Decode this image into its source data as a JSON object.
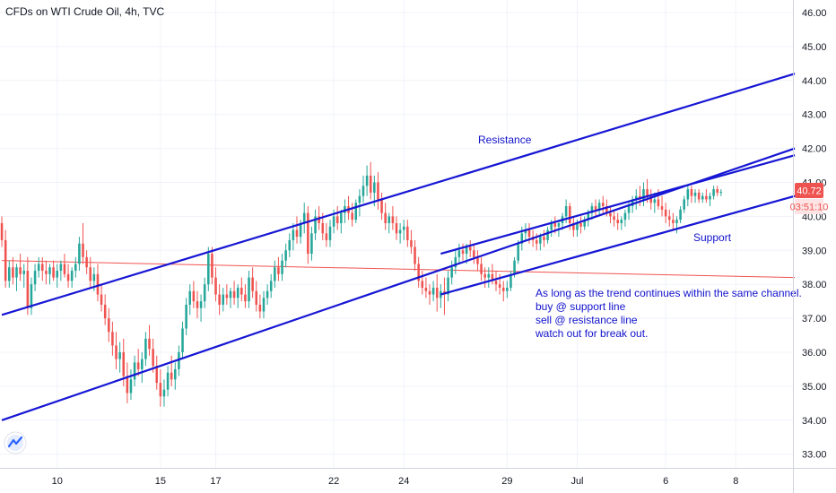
{
  "header": {
    "title": "CFDs on WTI Crude Oil, 4h, TVC"
  },
  "price_badge": {
    "value": "40.72",
    "timer": "03:51:10",
    "color": "#ef5350"
  },
  "colors": {
    "up": "#26a69a",
    "down": "#ef5350",
    "channel": "#1616d4",
    "hline": "#ef5350",
    "grid": "#f0f3fa",
    "annotation": "#1111cc"
  },
  "logo": {
    "icon": "tradingview-logo-icon"
  },
  "chart_data": {
    "type": "candlestick",
    "y_ticks": [
      "46.00",
      "45.00",
      "44.00",
      "43.00",
      "42.00",
      "41.00",
      "40.00",
      "39.00",
      "38.00",
      "37.00",
      "36.00",
      "35.00",
      "34.00",
      "33.00"
    ],
    "x_ticks": [
      {
        "label": "10",
        "slot": 15
      },
      {
        "label": "15",
        "slot": 43
      },
      {
        "label": "17",
        "slot": 58
      },
      {
        "label": "22",
        "slot": 90
      },
      {
        "label": "24",
        "slot": 109
      },
      {
        "label": "29",
        "slot": 137
      },
      {
        "label": "Jul",
        "slot": 156
      },
      {
        "label": "6",
        "slot": 180
      },
      {
        "label": "8",
        "slot": 199
      }
    ],
    "ylim": [
      32.6,
      46.2
    ],
    "slots": 215,
    "annotations": {
      "resistance": "Resistance",
      "support": "Support",
      "note": [
        "As long as the trend continues within the same channel.",
        "buy @ support line",
        "sell @ resistance line",
        "watch out for break out."
      ]
    },
    "lines": [
      {
        "name": "outer-resistance",
        "from": [
          0,
          37.1
        ],
        "to": [
          215,
          44.2
        ]
      },
      {
        "name": "outer-support",
        "from": [
          0,
          34.0
        ],
        "to": [
          215,
          42.0
        ]
      },
      {
        "name": "inner-resistance",
        "from": [
          119,
          38.9
        ],
        "to": [
          215,
          41.8
        ]
      },
      {
        "name": "inner-support",
        "from": [
          119,
          37.7
        ],
        "to": [
          215,
          40.6
        ]
      },
      {
        "name": "horizontal",
        "from": [
          0,
          38.7
        ],
        "to": [
          215,
          38.2
        ]
      }
    ],
    "candles": [
      [
        39.8,
        40.0,
        39.1,
        39.3
      ],
      [
        39.3,
        39.6,
        37.9,
        38.1
      ],
      [
        38.1,
        38.7,
        37.9,
        38.5
      ],
      [
        38.5,
        38.8,
        38.0,
        38.2
      ],
      [
        38.2,
        38.6,
        37.8,
        38.5
      ],
      [
        38.5,
        38.9,
        38.1,
        38.3
      ],
      [
        38.3,
        38.6,
        37.9,
        38.4
      ],
      [
        38.4,
        38.8,
        37.1,
        37.3
      ],
      [
        37.3,
        38.2,
        37.1,
        38.0
      ],
      [
        38.0,
        38.6,
        37.8,
        38.4
      ],
      [
        38.4,
        38.8,
        38.2,
        38.6
      ],
      [
        38.6,
        38.8,
        38.1,
        38.4
      ],
      [
        38.4,
        38.7,
        38.0,
        38.3
      ],
      [
        38.3,
        38.6,
        38.0,
        38.5
      ],
      [
        38.5,
        38.7,
        38.1,
        38.2
      ],
      [
        38.2,
        38.6,
        37.9,
        38.4
      ],
      [
        38.4,
        38.7,
        38.1,
        38.6
      ],
      [
        38.6,
        38.9,
        38.2,
        38.3
      ],
      [
        38.3,
        38.6,
        37.9,
        38.1
      ],
      [
        38.1,
        38.5,
        37.9,
        38.4
      ],
      [
        38.4,
        38.8,
        38.2,
        38.6
      ],
      [
        38.6,
        39.4,
        38.4,
        39.2
      ],
      [
        39.2,
        39.8,
        38.6,
        38.8
      ],
      [
        38.8,
        39.0,
        38.3,
        38.5
      ],
      [
        38.5,
        38.8,
        37.9,
        38.1
      ],
      [
        38.1,
        38.5,
        37.8,
        38.3
      ],
      [
        38.3,
        38.6,
        37.5,
        37.7
      ],
      [
        37.7,
        38.0,
        37.2,
        37.4
      ],
      [
        37.4,
        37.7,
        36.8,
        37.0
      ],
      [
        37.0,
        37.3,
        36.3,
        36.6
      ],
      [
        36.6,
        36.9,
        35.9,
        36.2
      ],
      [
        36.2,
        36.6,
        35.5,
        35.8
      ],
      [
        35.8,
        36.3,
        35.4,
        36.0
      ],
      [
        36.0,
        36.4,
        35.0,
        35.3
      ],
      [
        35.3,
        35.7,
        34.5,
        34.8
      ],
      [
        34.8,
        35.5,
        34.6,
        35.2
      ],
      [
        35.2,
        35.9,
        35.0,
        35.7
      ],
      [
        35.7,
        36.1,
        35.3,
        35.5
      ],
      [
        35.5,
        36.0,
        35.1,
        35.8
      ],
      [
        35.8,
        36.6,
        35.6,
        36.4
      ],
      [
        36.4,
        36.8,
        35.9,
        36.1
      ],
      [
        36.1,
        36.4,
        35.4,
        35.6
      ],
      [
        35.6,
        35.9,
        34.9,
        35.1
      ],
      [
        35.1,
        35.5,
        34.4,
        34.7
      ],
      [
        34.7,
        35.2,
        34.4,
        34.9
      ],
      [
        34.9,
        35.6,
        34.7,
        35.4
      ],
      [
        35.4,
        35.9,
        35.0,
        35.2
      ],
      [
        35.2,
        35.7,
        34.9,
        35.5
      ],
      [
        35.5,
        36.2,
        35.3,
        36.0
      ],
      [
        36.0,
        36.9,
        35.8,
        36.7
      ],
      [
        36.7,
        37.6,
        36.5,
        37.4
      ],
      [
        37.4,
        38.0,
        37.1,
        37.8
      ],
      [
        37.8,
        38.1,
        37.3,
        37.5
      ],
      [
        37.5,
        37.8,
        37.0,
        37.3
      ],
      [
        37.3,
        37.7,
        36.9,
        37.5
      ],
      [
        37.5,
        38.2,
        37.3,
        38.0
      ],
      [
        38.0,
        39.1,
        37.8,
        38.9
      ],
      [
        38.9,
        39.1,
        38.0,
        38.2
      ],
      [
        38.2,
        38.5,
        37.5,
        37.7
      ],
      [
        37.7,
        38.0,
        37.1,
        37.4
      ],
      [
        37.4,
        37.9,
        37.2,
        37.7
      ],
      [
        37.7,
        38.0,
        37.4,
        37.6
      ],
      [
        37.6,
        37.9,
        37.3,
        37.8
      ],
      [
        37.8,
        38.1,
        37.4,
        37.6
      ],
      [
        37.6,
        38.0,
        37.3,
        37.9
      ],
      [
        37.9,
        38.2,
        37.5,
        37.7
      ],
      [
        37.7,
        38.0,
        37.3,
        37.5
      ],
      [
        37.5,
        38.4,
        37.3,
        38.2
      ],
      [
        38.2,
        38.5,
        37.6,
        37.8
      ],
      [
        37.8,
        38.1,
        37.2,
        37.4
      ],
      [
        37.4,
        37.7,
        37.0,
        37.2
      ],
      [
        37.2,
        37.8,
        37.0,
        37.6
      ],
      [
        37.6,
        38.0,
        37.4,
        37.8
      ],
      [
        37.8,
        38.3,
        37.6,
        38.1
      ],
      [
        38.1,
        38.7,
        37.9,
        38.5
      ],
      [
        38.5,
        38.8,
        38.1,
        38.3
      ],
      [
        38.3,
        38.9,
        38.1,
        38.7
      ],
      [
        38.7,
        39.2,
        38.5,
        39.0
      ],
      [
        39.0,
        39.5,
        38.8,
        39.3
      ],
      [
        39.3,
        39.8,
        39.0,
        39.6
      ],
      [
        39.6,
        40.0,
        39.2,
        39.4
      ],
      [
        39.4,
        39.9,
        39.2,
        39.8
      ],
      [
        39.8,
        40.4,
        39.5,
        40.1
      ],
      [
        40.1,
        40.3,
        38.6,
        38.9
      ],
      [
        38.9,
        39.7,
        38.7,
        39.5
      ],
      [
        39.5,
        40.2,
        39.3,
        40.0
      ],
      [
        40.0,
        40.3,
        39.6,
        39.8
      ],
      [
        39.8,
        40.1,
        39.3,
        39.5
      ],
      [
        39.5,
        39.8,
        39.1,
        39.3
      ],
      [
        39.3,
        39.9,
        39.1,
        39.7
      ],
      [
        39.7,
        40.2,
        39.5,
        40.0
      ],
      [
        40.0,
        40.3,
        39.6,
        39.8
      ],
      [
        39.8,
        40.2,
        39.5,
        40.1
      ],
      [
        40.1,
        40.5,
        39.8,
        40.3
      ],
      [
        40.3,
        40.6,
        39.9,
        40.1
      ],
      [
        40.1,
        40.4,
        39.7,
        39.9
      ],
      [
        39.9,
        40.5,
        39.8,
        40.4
      ],
      [
        40.4,
        40.8,
        40.0,
        40.6
      ],
      [
        40.6,
        41.2,
        40.4,
        40.9
      ],
      [
        40.9,
        41.5,
        40.6,
        41.2
      ],
      [
        41.2,
        41.6,
        40.5,
        40.7
      ],
      [
        40.7,
        41.2,
        40.3,
        41.0
      ],
      [
        41.0,
        41.3,
        40.2,
        40.5
      ],
      [
        40.5,
        40.7,
        39.9,
        40.1
      ],
      [
        40.1,
        40.4,
        39.6,
        39.8
      ],
      [
        39.8,
        40.1,
        39.5,
        40.0
      ],
      [
        40.0,
        40.3,
        39.6,
        39.8
      ],
      [
        39.8,
        40.0,
        39.3,
        39.5
      ],
      [
        39.5,
        39.8,
        39.2,
        39.6
      ],
      [
        39.6,
        39.9,
        39.3,
        39.7
      ],
      [
        39.7,
        39.9,
        39.1,
        39.3
      ],
      [
        39.3,
        39.6,
        38.9,
        39.1
      ],
      [
        39.1,
        39.3,
        38.4,
        38.6
      ],
      [
        38.6,
        38.8,
        37.9,
        38.1
      ],
      [
        38.1,
        38.4,
        37.7,
        37.9
      ],
      [
        37.9,
        38.2,
        37.6,
        37.8
      ],
      [
        37.8,
        38.0,
        37.4,
        37.7
      ],
      [
        37.7,
        38.1,
        37.5,
        37.9
      ],
      [
        37.9,
        38.3,
        37.2,
        37.6
      ],
      [
        37.6,
        38.0,
        37.3,
        37.8
      ],
      [
        37.8,
        38.2,
        37.1,
        37.7
      ],
      [
        37.7,
        38.4,
        37.5,
        38.2
      ],
      [
        38.2,
        38.7,
        38.0,
        38.5
      ],
      [
        38.5,
        39.0,
        38.3,
        38.8
      ],
      [
        38.8,
        39.2,
        38.6,
        39.0
      ],
      [
        39.0,
        39.2,
        38.7,
        38.9
      ],
      [
        38.9,
        39.2,
        38.6,
        39.1
      ],
      [
        39.1,
        39.3,
        38.8,
        39.0
      ],
      [
        39.0,
        39.2,
        38.6,
        38.8
      ],
      [
        38.8,
        39.0,
        38.4,
        38.6
      ],
      [
        38.6,
        38.8,
        38.1,
        38.3
      ],
      [
        38.3,
        38.5,
        37.9,
        38.2
      ],
      [
        38.2,
        38.5,
        37.9,
        38.3
      ],
      [
        38.3,
        38.6,
        38.0,
        38.1
      ],
      [
        38.1,
        38.4,
        37.8,
        38.0
      ],
      [
        38.0,
        38.3,
        37.7,
        37.9
      ],
      [
        37.9,
        38.1,
        37.5,
        37.8
      ],
      [
        37.8,
        38.1,
        37.6,
        37.9
      ],
      [
        37.9,
        38.4,
        37.8,
        38.3
      ],
      [
        38.3,
        38.8,
        38.2,
        38.7
      ],
      [
        38.7,
        39.3,
        38.6,
        39.2
      ],
      [
        39.2,
        39.7,
        39.0,
        39.5
      ],
      [
        39.5,
        39.8,
        39.3,
        39.6
      ],
      [
        39.6,
        39.8,
        39.2,
        39.4
      ],
      [
        39.4,
        39.6,
        39.1,
        39.3
      ],
      [
        39.3,
        39.5,
        39.0,
        39.2
      ],
      [
        39.2,
        39.5,
        39.0,
        39.4
      ],
      [
        39.4,
        39.6,
        39.1,
        39.3
      ],
      [
        39.3,
        39.7,
        39.2,
        39.6
      ],
      [
        39.6,
        39.9,
        39.4,
        39.8
      ],
      [
        39.8,
        40.0,
        39.5,
        39.7
      ],
      [
        39.7,
        39.9,
        39.4,
        39.8
      ],
      [
        39.8,
        40.1,
        39.6,
        40.0
      ],
      [
        40.0,
        40.5,
        39.8,
        40.3
      ],
      [
        40.3,
        40.4,
        39.6,
        39.8
      ],
      [
        39.8,
        40.0,
        39.4,
        39.6
      ],
      [
        39.6,
        39.9,
        39.4,
        39.8
      ],
      [
        39.8,
        40.0,
        39.5,
        39.7
      ],
      [
        39.7,
        40.0,
        39.6,
        39.9
      ],
      [
        39.9,
        40.2,
        39.7,
        40.1
      ],
      [
        40.1,
        40.4,
        39.9,
        40.3
      ],
      [
        40.3,
        40.5,
        40.0,
        40.2
      ],
      [
        40.2,
        40.5,
        40.0,
        40.4
      ],
      [
        40.4,
        40.6,
        40.1,
        40.3
      ],
      [
        40.3,
        40.5,
        40.0,
        40.1
      ],
      [
        40.1,
        40.3,
        39.8,
        40.0
      ],
      [
        40.0,
        40.2,
        39.7,
        39.9
      ],
      [
        39.9,
        40.1,
        39.6,
        39.8
      ],
      [
        39.8,
        40.0,
        39.6,
        39.9
      ],
      [
        39.9,
        40.2,
        39.7,
        40.1
      ],
      [
        40.1,
        40.4,
        39.9,
        40.3
      ],
      [
        40.3,
        40.6,
        40.1,
        40.5
      ],
      [
        40.5,
        40.8,
        40.2,
        40.6
      ],
      [
        40.6,
        40.9,
        40.3,
        40.5
      ],
      [
        40.5,
        41.0,
        40.3,
        40.8
      ],
      [
        40.8,
        41.1,
        40.4,
        40.6
      ],
      [
        40.6,
        40.8,
        40.2,
        40.4
      ],
      [
        40.4,
        40.7,
        40.1,
        40.5
      ],
      [
        40.5,
        40.8,
        40.2,
        40.3
      ],
      [
        40.3,
        40.6,
        40.0,
        40.2
      ],
      [
        40.2,
        40.4,
        39.8,
        40.0
      ],
      [
        40.0,
        40.2,
        39.7,
        39.9
      ],
      [
        39.9,
        40.1,
        39.6,
        39.8
      ],
      [
        39.8,
        40.0,
        39.5,
        39.9
      ],
      [
        39.9,
        40.3,
        39.8,
        40.2
      ],
      [
        40.2,
        40.6,
        40.1,
        40.5
      ],
      [
        40.5,
        40.9,
        40.3,
        40.8
      ],
      [
        40.8,
        40.9,
        40.4,
        40.6
      ],
      [
        40.6,
        40.8,
        40.4,
        40.7
      ],
      [
        40.7,
        40.8,
        40.4,
        40.5
      ],
      [
        40.5,
        40.7,
        40.4,
        40.6
      ],
      [
        40.6,
        40.8,
        40.4,
        40.5
      ],
      [
        40.5,
        40.7,
        40.3,
        40.6
      ],
      [
        40.6,
        40.9,
        40.5,
        40.8
      ],
      [
        40.8,
        40.9,
        40.6,
        40.7
      ],
      [
        40.7,
        40.8,
        40.6,
        40.72
      ]
    ]
  }
}
